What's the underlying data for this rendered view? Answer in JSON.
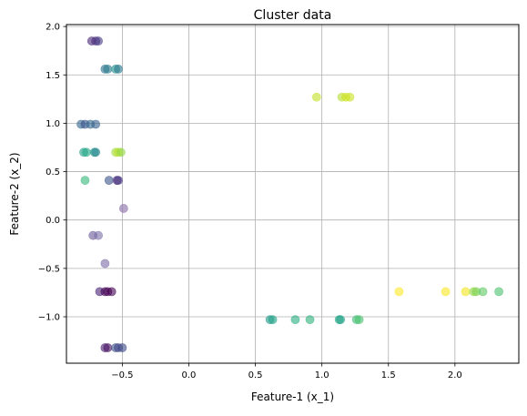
{
  "chart_data": {
    "type": "scatter",
    "title": "Cluster data",
    "xlabel": "Feature-1 (x_1)",
    "ylabel": "Feature-2 (x_2)",
    "xlim": [
      -0.92,
      2.48
    ],
    "ylim": [
      -1.48,
      2.02
    ],
    "grid": true,
    "x_ticks": [
      {
        "value": -0.5,
        "label": "−0.5"
      },
      {
        "value": 0.0,
        "label": "0.0"
      },
      {
        "value": 0.5,
        "label": "0.5"
      },
      {
        "value": 1.0,
        "label": "1.0"
      },
      {
        "value": 1.5,
        "label": "1.5"
      },
      {
        "value": 2.0,
        "label": "2.0"
      }
    ],
    "y_ticks": [
      {
        "value": -1.0,
        "label": "−1.0"
      },
      {
        "value": -0.5,
        "label": "−0.5"
      },
      {
        "value": 0.0,
        "label": "0.0"
      },
      {
        "value": 0.5,
        "label": "0.5"
      },
      {
        "value": 1.0,
        "label": "1.0"
      },
      {
        "value": 1.5,
        "label": "1.5"
      },
      {
        "value": 2.0,
        "label": "2.0"
      }
    ],
    "points": [
      {
        "x": -0.73,
        "y": 1.85,
        "color": "#482878"
      },
      {
        "x": -0.7,
        "y": 1.85,
        "color": "#482878"
      },
      {
        "x": -0.68,
        "y": 1.85,
        "color": "#443a83"
      },
      {
        "x": -0.63,
        "y": 1.56,
        "color": "#2c728e"
      },
      {
        "x": -0.61,
        "y": 1.56,
        "color": "#287c8e"
      },
      {
        "x": -0.55,
        "y": 1.56,
        "color": "#21918c"
      },
      {
        "x": -0.53,
        "y": 1.56,
        "color": "#2a788e"
      },
      {
        "x": -0.81,
        "y": 0.99,
        "color": "#31688e"
      },
      {
        "x": -0.78,
        "y": 0.99,
        "color": "#3b528b"
      },
      {
        "x": -0.74,
        "y": 0.99,
        "color": "#31688e"
      },
      {
        "x": -0.7,
        "y": 0.99,
        "color": "#35608d"
      },
      {
        "x": -0.79,
        "y": 0.7,
        "color": "#1f9e89"
      },
      {
        "x": -0.77,
        "y": 0.7,
        "color": "#22a884"
      },
      {
        "x": -0.71,
        "y": 0.7,
        "color": "#1e9b8a"
      },
      {
        "x": -0.7,
        "y": 0.7,
        "color": "#26828e"
      },
      {
        "x": -0.55,
        "y": 0.7,
        "color": "#a0da39"
      },
      {
        "x": -0.53,
        "y": 0.7,
        "color": "#bddf26"
      },
      {
        "x": -0.51,
        "y": 0.7,
        "color": "#8fd744"
      },
      {
        "x": -0.78,
        "y": 0.41,
        "color": "#35b779"
      },
      {
        "x": -0.6,
        "y": 0.41,
        "color": "#3b528b"
      },
      {
        "x": -0.54,
        "y": 0.41,
        "color": "#472d7b"
      },
      {
        "x": -0.53,
        "y": 0.41,
        "color": "#46327e"
      },
      {
        "x": -0.49,
        "y": 0.12,
        "color": "#8b6aa8"
      },
      {
        "x": -0.72,
        "y": -0.16,
        "color": "#6a5a9a"
      },
      {
        "x": -0.68,
        "y": -0.16,
        "color": "#7b6fa6"
      },
      {
        "x": -0.63,
        "y": -0.45,
        "color": "#7d6aa6"
      },
      {
        "x": -0.67,
        "y": -0.74,
        "color": "#482173"
      },
      {
        "x": -0.63,
        "y": -0.74,
        "color": "#440154"
      },
      {
        "x": -0.61,
        "y": -0.74,
        "color": "#440154"
      },
      {
        "x": -0.58,
        "y": -0.74,
        "color": "#440154"
      },
      {
        "x": -0.63,
        "y": -1.32,
        "color": "#481f70"
      },
      {
        "x": -0.61,
        "y": -1.32,
        "color": "#471063"
      },
      {
        "x": -0.55,
        "y": -1.32,
        "color": "#3b528b"
      },
      {
        "x": -0.53,
        "y": -1.32,
        "color": "#414487"
      },
      {
        "x": -0.5,
        "y": -1.32,
        "color": "#3e4a89"
      },
      {
        "x": 0.96,
        "y": 1.27,
        "color": "#c2df23"
      },
      {
        "x": 1.15,
        "y": 1.27,
        "color": "#b5de2b"
      },
      {
        "x": 1.18,
        "y": 1.27,
        "color": "#d0e11c"
      },
      {
        "x": 1.21,
        "y": 1.27,
        "color": "#cae11f"
      },
      {
        "x": 0.61,
        "y": -1.03,
        "color": "#1f988b"
      },
      {
        "x": 0.63,
        "y": -1.03,
        "color": "#20a386"
      },
      {
        "x": 0.8,
        "y": -1.03,
        "color": "#26ad81"
      },
      {
        "x": 0.91,
        "y": -1.03,
        "color": "#2db27d"
      },
      {
        "x": 1.13,
        "y": -1.03,
        "color": "#21a685"
      },
      {
        "x": 1.14,
        "y": -1.03,
        "color": "#1fa187"
      },
      {
        "x": 1.26,
        "y": -1.03,
        "color": "#3bbb75"
      },
      {
        "x": 1.28,
        "y": -1.03,
        "color": "#4ac16d"
      },
      {
        "x": 1.58,
        "y": -0.74,
        "color": "#fde725"
      },
      {
        "x": 1.93,
        "y": -0.74,
        "color": "#f8e621"
      },
      {
        "x": 2.08,
        "y": -0.74,
        "color": "#f1e51d"
      },
      {
        "x": 2.14,
        "y": -0.74,
        "color": "#95d840"
      },
      {
        "x": 2.16,
        "y": -0.74,
        "color": "#7ad151"
      },
      {
        "x": 2.21,
        "y": -0.74,
        "color": "#5ec962"
      },
      {
        "x": 2.33,
        "y": -0.74,
        "color": "#4ac16d"
      }
    ]
  }
}
